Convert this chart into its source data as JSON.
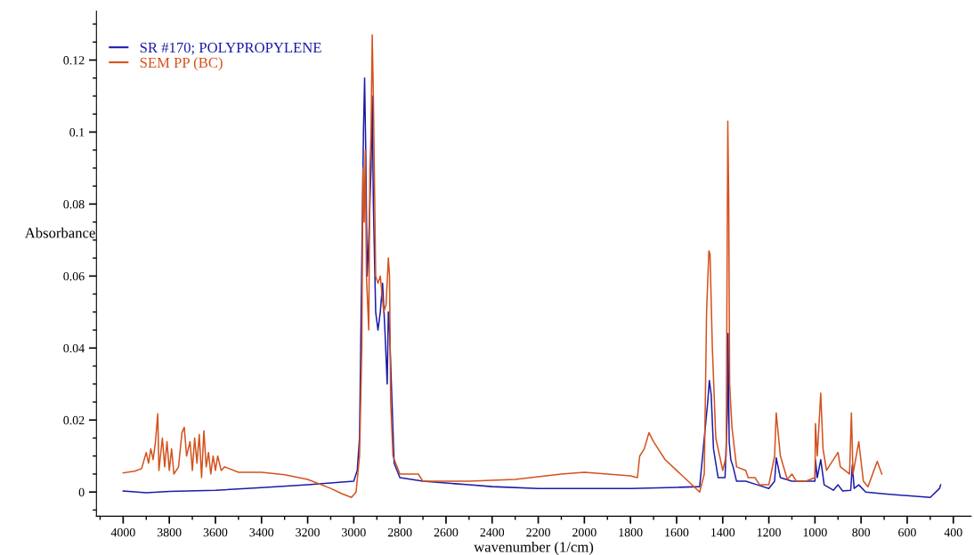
{
  "chart_data": {
    "type": "line",
    "xlabel": "wavenumber (1/cm)",
    "ylabel": "Absorbance",
    "xlim": [
      4116,
      323
    ],
    "xticks": [
      4000,
      3800,
      3600,
      3400,
      3200,
      3000,
      2800,
      2600,
      2400,
      2200,
      2000,
      1800,
      1600,
      1400,
      1200,
      1000,
      800,
      600,
      400
    ],
    "ylim": [
      -0.0067,
      0.1336
    ],
    "yticks": [
      0,
      0.02,
      0.04,
      0.06,
      {
        "value": 0.1,
        "label": "0.1"
      },
      0.08,
      0.12
    ],
    "grid": false,
    "legend": "top left",
    "marker": "none",
    "line_style": "solid",
    "series": [
      {
        "name": "SR #170; POLYPROPYLENE",
        "color": "#1c1ca8",
        "x": [
          4000,
          3900,
          3800,
          3600,
          3400,
          3200,
          3100,
          3000,
          2985,
          2975,
          2958,
          2953,
          2948,
          2942,
          2935,
          2925,
          2920,
          2915,
          2905,
          2895,
          2885,
          2875,
          2865,
          2855,
          2850,
          2845,
          2825,
          2800,
          2700,
          2500,
          2400,
          2200,
          2000,
          1800,
          1600,
          1500,
          1465,
          1458,
          1450,
          1440,
          1420,
          1390,
          1380,
          1377,
          1372,
          1365,
          1355,
          1340,
          1300,
          1250,
          1200,
          1175,
          1168,
          1150,
          1100,
          1000,
          998,
          990,
          975,
          960,
          920,
          900,
          880,
          845,
          838,
          830,
          810,
          780,
          700,
          600,
          500,
          460,
          455
        ],
        "values": [
          0.0003,
          -0.0002,
          0.0002,
          0.0005,
          0.0012,
          0.002,
          0.0025,
          0.003,
          0.006,
          0.015,
          0.1,
          0.115,
          0.095,
          0.06,
          0.07,
          0.09,
          0.11,
          0.08,
          0.05,
          0.045,
          0.05,
          0.058,
          0.045,
          0.03,
          0.05,
          0.045,
          0.008,
          0.004,
          0.003,
          0.002,
          0.0015,
          0.001,
          0.001,
          0.001,
          0.0013,
          0.0015,
          0.025,
          0.031,
          0.027,
          0.012,
          0.004,
          0.004,
          0.022,
          0.044,
          0.014,
          0.009,
          0.007,
          0.003,
          0.003,
          0.002,
          0.001,
          0.003,
          0.0095,
          0.004,
          0.003,
          0.003,
          0.009,
          0.004,
          0.009,
          0.002,
          0.0005,
          0.002,
          0.0003,
          0.0005,
          0.0075,
          0.001,
          0.002,
          0.0,
          -0.0005,
          -0.001,
          -0.0015,
          0.001,
          0.002
        ]
      },
      {
        "name": "SEM PP (BC)",
        "color": "#d4521e",
        "x": [
          4000,
          3950,
          3920,
          3900,
          3890,
          3880,
          3870,
          3860,
          3850,
          3845,
          3830,
          3820,
          3810,
          3800,
          3790,
          3780,
          3760,
          3745,
          3735,
          3725,
          3710,
          3700,
          3690,
          3680,
          3670,
          3660,
          3650,
          3640,
          3630,
          3620,
          3610,
          3600,
          3590,
          3575,
          3560,
          3500,
          3400,
          3300,
          3200,
          3100,
          3050,
          3010,
          2990,
          2975,
          2965,
          2960,
          2955,
          2950,
          2945,
          2935,
          2930,
          2925,
          2920,
          2915,
          2905,
          2895,
          2885,
          2870,
          2860,
          2850,
          2845,
          2840,
          2830,
          2800,
          2720,
          2700,
          2500,
          2300,
          2100,
          2000,
          1900,
          1800,
          1770,
          1760,
          1740,
          1720,
          1700,
          1650,
          1600,
          1550,
          1500,
          1480,
          1470,
          1460,
          1455,
          1445,
          1430,
          1400,
          1385,
          1378,
          1374,
          1370,
          1360,
          1340,
          1300,
          1290,
          1260,
          1240,
          1200,
          1175,
          1168,
          1150,
          1120,
          1100,
          1080,
          1040,
          1000,
          998,
          990,
          975,
          965,
          950,
          900,
          890,
          850,
          842,
          835,
          810,
          790,
          770,
          730,
          710
        ],
        "values": [
          0.0053,
          0.0058,
          0.0065,
          0.011,
          0.008,
          0.012,
          0.009,
          0.014,
          0.0217,
          0.006,
          0.015,
          0.007,
          0.014,
          0.006,
          0.012,
          0.005,
          0.007,
          0.0165,
          0.018,
          0.01,
          0.014,
          0.006,
          0.015,
          0.008,
          0.016,
          0.004,
          0.017,
          0.007,
          0.011,
          0.005,
          0.01,
          0.006,
          0.01,
          0.006,
          0.007,
          0.0055,
          0.0055,
          0.0048,
          0.0035,
          0.001,
          -0.0005,
          -0.0015,
          0.0,
          0.01,
          0.04,
          0.09,
          0.075,
          0.095,
          0.06,
          0.045,
          0.09,
          0.1,
          0.127,
          0.11,
          0.06,
          0.058,
          0.06,
          0.05,
          0.052,
          0.065,
          0.06,
          0.025,
          0.01,
          0.005,
          0.005,
          0.003,
          0.003,
          0.0035,
          0.005,
          0.0055,
          0.005,
          0.0045,
          0.004,
          0.01,
          0.012,
          0.0165,
          0.014,
          0.009,
          0.006,
          0.003,
          0.0,
          0.005,
          0.05,
          0.067,
          0.066,
          0.04,
          0.015,
          0.006,
          0.01,
          0.103,
          0.081,
          0.03,
          0.018,
          0.007,
          0.006,
          0.004,
          0.004,
          0.002,
          0.002,
          0.01,
          0.022,
          0.01,
          0.0035,
          0.005,
          0.003,
          0.003,
          0.004,
          0.019,
          0.01,
          0.0275,
          0.012,
          0.006,
          0.011,
          0.007,
          0.005,
          0.022,
          0.005,
          0.014,
          0.003,
          0.0015,
          0.0085,
          0.005
        ]
      }
    ]
  }
}
